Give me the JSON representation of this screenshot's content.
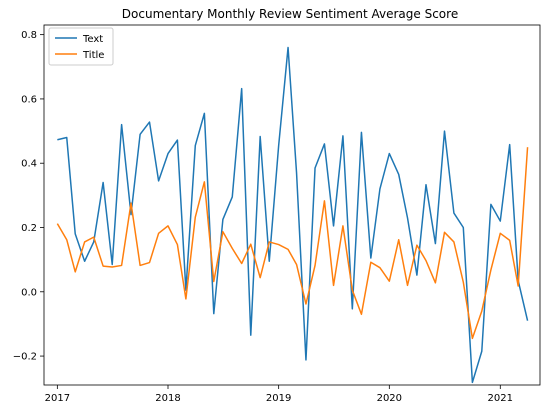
{
  "chart_data": {
    "type": "line",
    "title": "Documentary Monthly Review Sentiment Average Score",
    "xlabel": "",
    "ylabel": "",
    "xlim": [
      "2016-11-18",
      "2021-05-12"
    ],
    "ylim": [
      -0.29,
      0.83
    ],
    "x_ticks": [
      {
        "label": "2017",
        "value": "2017-01-01"
      },
      {
        "label": "2018",
        "value": "2018-01-01"
      },
      {
        "label": "2019",
        "value": "2019-01-01"
      },
      {
        "label": "2020",
        "value": "2020-01-01"
      },
      {
        "label": "2021",
        "value": "2021-01-01"
      }
    ],
    "y_ticks": [
      -0.2,
      0.0,
      0.2,
      0.4,
      0.6,
      0.8
    ],
    "y_tick_labels": [
      "−0.2",
      "0.0",
      "0.2",
      "0.4",
      "0.6",
      "0.8"
    ],
    "grid": false,
    "legend_position": "top-left",
    "x": [
      "2017-01",
      "2017-02",
      "2017-03",
      "2017-04",
      "2017-05",
      "2017-06",
      "2017-07",
      "2017-08",
      "2017-09",
      "2017-10",
      "2017-11",
      "2017-12",
      "2018-01",
      "2018-02",
      "2018-03",
      "2018-04",
      "2018-05",
      "2018-06",
      "2018-07",
      "2018-08",
      "2018-09",
      "2018-10",
      "2018-11",
      "2018-12",
      "2019-01",
      "2019-02",
      "2019-03",
      "2019-04",
      "2019-05",
      "2019-06",
      "2019-07",
      "2019-08",
      "2019-09",
      "2019-10",
      "2019-11",
      "2019-12",
      "2020-01",
      "2020-02",
      "2020-03",
      "2020-04",
      "2020-05",
      "2020-06",
      "2020-07",
      "2020-08",
      "2020-09",
      "2020-10",
      "2020-11",
      "2020-12",
      "2021-01",
      "2021-02",
      "2021-03",
      "2021-04"
    ],
    "series": [
      {
        "name": "Text",
        "color": "#1f77b4",
        "values": [
          0.473,
          0.48,
          0.18,
          0.095,
          0.155,
          0.34,
          0.085,
          0.52,
          0.24,
          0.49,
          0.528,
          0.345,
          0.43,
          0.472,
          0.005,
          0.455,
          0.555,
          -0.068,
          0.225,
          0.295,
          0.632,
          -0.135,
          0.483,
          0.095,
          0.455,
          0.76,
          0.37,
          -0.212,
          0.385,
          0.46,
          0.205,
          0.485,
          -0.053,
          0.496,
          0.105,
          0.32,
          0.43,
          0.365,
          0.23,
          0.052,
          0.333,
          0.15,
          0.5,
          0.245,
          0.2,
          -0.282,
          -0.185,
          0.272,
          0.22,
          0.458,
          0.035,
          -0.09
        ]
      },
      {
        "name": "Title",
        "color": "#ff7f0e",
        "values": [
          0.212,
          0.162,
          0.062,
          0.155,
          0.17,
          0.08,
          0.077,
          0.082,
          0.276,
          0.082,
          0.091,
          0.182,
          0.205,
          0.147,
          -0.022,
          0.232,
          0.342,
          0.032,
          0.187,
          0.135,
          0.088,
          0.148,
          0.044,
          0.155,
          0.147,
          0.132,
          0.085,
          -0.038,
          0.082,
          0.283,
          0.02,
          0.205,
          0.005,
          -0.07,
          0.092,
          0.075,
          0.033,
          0.162,
          0.02,
          0.145,
          0.097,
          0.028,
          0.185,
          0.155,
          0.03,
          -0.145,
          -0.06,
          0.068,
          0.182,
          0.16,
          0.018,
          0.45
        ]
      }
    ]
  }
}
